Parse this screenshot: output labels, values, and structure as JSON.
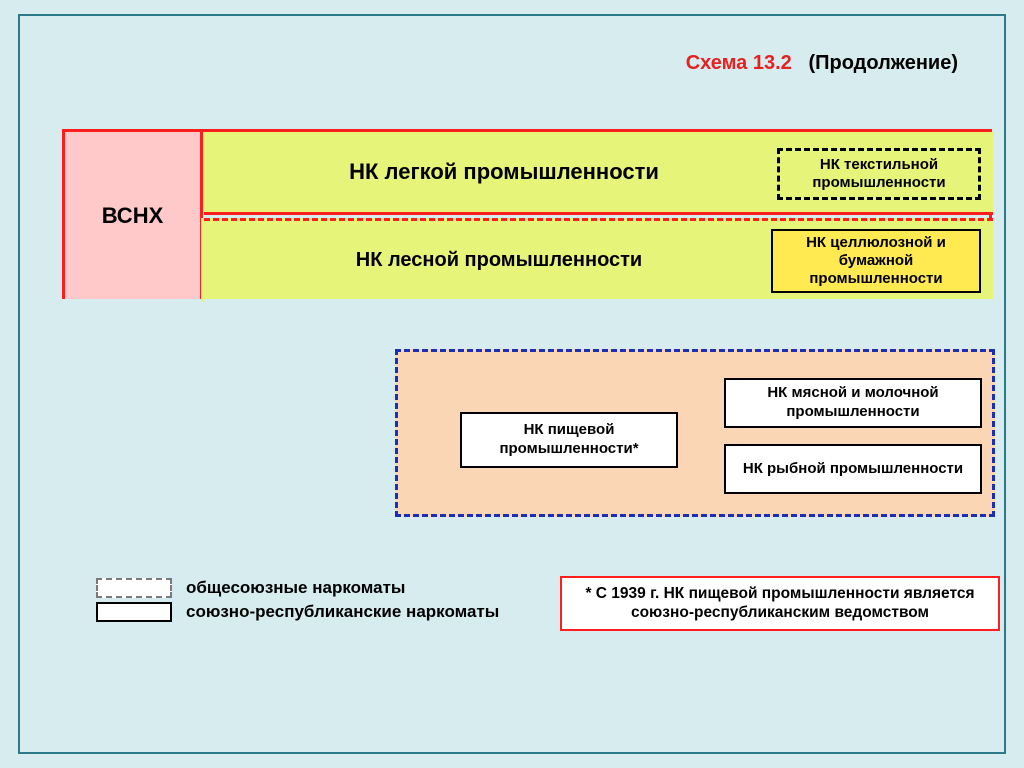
{
  "header": {
    "scheme_label": "Схема 13.2",
    "continuation": "(Продолжение)"
  },
  "top_block": {
    "root_label": "ВСНХ",
    "row_light": {
      "main": "НК легкой промышленности",
      "sub": "НК текстильной промышленности"
    },
    "row_forest": {
      "main": "НК лесной промышленности",
      "sub": "НК целлюлозной и бумажной промышленности"
    }
  },
  "blue_block": {
    "food": "НК пищевой промышленности*",
    "meat": "НК мясной и молочной промышленности",
    "fish": "НК рыбной промышленности"
  },
  "legend": {
    "dashed": "общесоюзные наркоматы",
    "solid": "союзно-республиканские наркоматы"
  },
  "footnote": "* С 1939 г. НК пищевой промышленности является союзно-республиканским ведомством",
  "colors": {
    "page_bg": "#d6ecee",
    "frame_border": "#2b7a8a",
    "red": "#ff1d1d",
    "pink": "#ffc9c9",
    "yellowgreen": "#e7f47a",
    "yellow": "#ffea52",
    "peach": "#fbd6b4",
    "blue": "#1b2fb5",
    "title_red": "#e52222"
  },
  "fonts": {
    "title": 20,
    "root": 22,
    "main_label": 22,
    "sub_label": 15,
    "legend": 17,
    "footnote": 15.5
  }
}
